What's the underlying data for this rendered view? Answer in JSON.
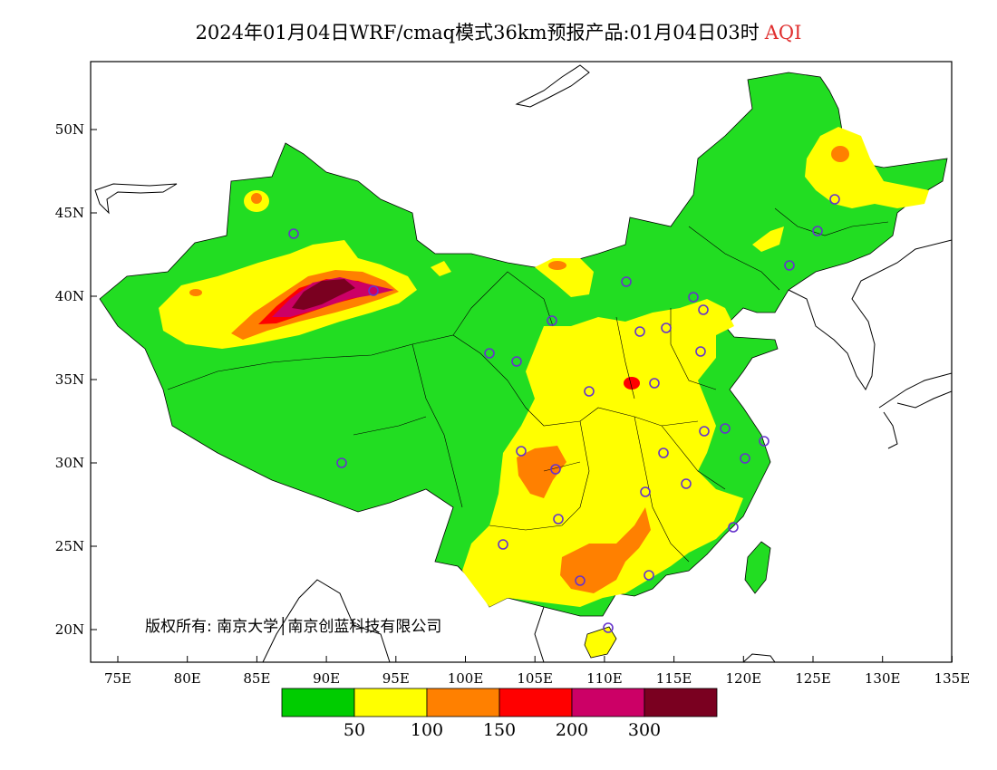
{
  "title": {
    "main": "2024年01月04日WRF/cmaq模式36km预报产品:01月04日03时",
    "variable": "AQI"
  },
  "axes": {
    "lon_ticks": [
      "75E",
      "80E",
      "85E",
      "90E",
      "95E",
      "100E",
      "105E",
      "110E",
      "115E",
      "120E",
      "125E",
      "130E",
      "135E"
    ],
    "lat_ticks": [
      "50N",
      "45N",
      "40N",
      "35N",
      "30N",
      "25N",
      "20N"
    ]
  },
  "colorbar": {
    "colors": [
      "#00cc00",
      "#ffff00",
      "#ff8000",
      "#ff0000",
      "#cc0066",
      "#7a0020"
    ],
    "labels": [
      "50",
      "100",
      "150",
      "200",
      "300"
    ]
  },
  "copyright": "版权所有: 南京大学│南京创蓝科技有限公司",
  "colors": {
    "green": "#22dd22",
    "yellow": "#ffff00",
    "orange": "#ff8000",
    "red": "#ff0000",
    "magenta": "#cc0066",
    "maroon": "#7a0020",
    "station_marker": "#6633cc"
  }
}
